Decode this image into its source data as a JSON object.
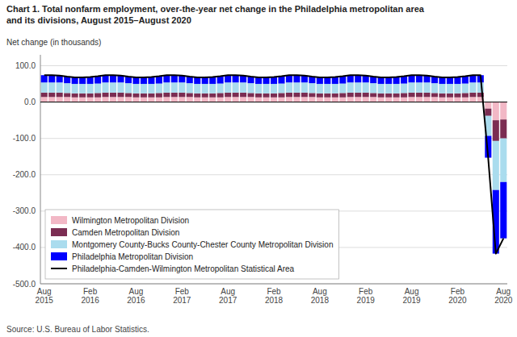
{
  "chart_data": {
    "type": "bar",
    "stacked": true,
    "title": "Chart 1. Total nonfarm employment, over-the-year net change in the Philadelphia metropolitan area\nand its divisions, August 2015–August 2020",
    "y_label": "Net change (in thousands)",
    "source": "Source: U.S. Bureau of Labor Statistics.",
    "categories": [
      "Aug\n2015",
      null,
      null,
      null,
      null,
      null,
      "Feb\n2016",
      null,
      null,
      null,
      null,
      null,
      "Aug\n2016",
      null,
      null,
      null,
      null,
      null,
      "Feb\n2017",
      null,
      null,
      null,
      null,
      null,
      "Aug\n2017",
      null,
      null,
      null,
      null,
      null,
      "Feb\n2018",
      null,
      null,
      null,
      null,
      null,
      "Aug\n2018",
      null,
      null,
      null,
      null,
      null,
      "Feb\n2019",
      null,
      null,
      null,
      null,
      null,
      "Aug\n2019",
      null,
      null,
      null,
      null,
      null,
      "Feb\n2020",
      null,
      null,
      null,
      null,
      null,
      "Aug\n2020"
    ],
    "ylim": [
      -500.0,
      130.0
    ],
    "yticks": [
      {
        "value": 100.0,
        "label": "100.0"
      },
      {
        "value": 0.0,
        "label": "0.0"
      },
      {
        "value": -100.0,
        "label": "-100.0"
      },
      {
        "value": -200.0,
        "label": "-200.0"
      },
      {
        "value": -300.0,
        "label": "-300.0"
      },
      {
        "value": -400.0,
        "label": "-400.0"
      },
      {
        "value": -500.0,
        "label": "-500.0"
      }
    ],
    "grid": true,
    "legend": "lower left",
    "series": [
      {
        "name": "Wilmington Metropolitan Division",
        "type": "bar",
        "color": "#f2b8c6",
        "values": [
          14,
          14,
          14,
          14,
          13,
          13,
          13,
          13,
          14,
          14,
          14,
          14,
          13,
          13,
          13,
          13,
          14,
          14,
          14,
          14,
          13,
          13,
          13,
          13,
          14,
          14,
          14,
          14,
          13,
          13,
          13,
          13,
          14,
          14,
          14,
          14,
          13,
          13,
          13,
          13,
          14,
          14,
          14,
          14,
          13,
          13,
          13,
          13,
          14,
          14,
          14,
          14,
          13,
          13,
          13,
          13,
          14,
          14,
          -18,
          -50,
          -48
        ]
      },
      {
        "name": "Camden Metropolitan Division",
        "type": "bar",
        "color": "#7b2d52",
        "values": [
          12,
          12,
          12,
          11,
          11,
          11,
          11,
          12,
          12,
          12,
          12,
          11,
          11,
          11,
          11,
          12,
          12,
          12,
          12,
          11,
          11,
          11,
          11,
          12,
          12,
          12,
          12,
          11,
          11,
          11,
          11,
          12,
          12,
          12,
          12,
          11,
          11,
          11,
          11,
          12,
          12,
          12,
          12,
          11,
          11,
          11,
          11,
          12,
          12,
          12,
          12,
          11,
          11,
          11,
          11,
          12,
          12,
          12,
          -20,
          -57,
          -52
        ]
      },
      {
        "name": "Montgomery County-Bucks County-Chester County Metropolitan Division",
        "type": "bar",
        "color": "#aadcee",
        "values": [
          28,
          28,
          28,
          27,
          26,
          26,
          26,
          26,
          28,
          28,
          28,
          27,
          26,
          26,
          26,
          26,
          28,
          28,
          28,
          27,
          26,
          26,
          26,
          26,
          28,
          28,
          28,
          27,
          26,
          26,
          26,
          26,
          28,
          28,
          28,
          27,
          26,
          26,
          26,
          26,
          28,
          28,
          28,
          27,
          26,
          26,
          26,
          26,
          28,
          28,
          28,
          27,
          26,
          26,
          26,
          26,
          28,
          28,
          -55,
          -135,
          -120
        ]
      },
      {
        "name": "Philadelphia Metropolitan Division",
        "type": "bar",
        "color": "#0000ff",
        "values": [
          20,
          20,
          19,
          18,
          18,
          18,
          19,
          20,
          20,
          20,
          19,
          18,
          18,
          18,
          19,
          20,
          20,
          20,
          19,
          18,
          18,
          18,
          19,
          20,
          20,
          20,
          19,
          18,
          18,
          18,
          19,
          20,
          20,
          20,
          19,
          18,
          18,
          18,
          19,
          20,
          20,
          20,
          19,
          18,
          18,
          18,
          19,
          20,
          20,
          20,
          19,
          18,
          18,
          18,
          19,
          20,
          20,
          20,
          -60,
          -175,
          -155
        ]
      },
      {
        "name": "Philadelphia-Camden-Wilmington Metropolitan Statistical Area",
        "type": "line",
        "color": "#000000",
        "values": [
          74,
          74,
          73,
          70,
          68,
          68,
          69,
          71,
          74,
          74,
          73,
          70,
          68,
          68,
          69,
          71,
          74,
          74,
          73,
          70,
          68,
          68,
          69,
          71,
          74,
          74,
          73,
          70,
          68,
          68,
          69,
          71,
          74,
          74,
          73,
          70,
          68,
          68,
          69,
          71,
          74,
          74,
          73,
          70,
          68,
          68,
          69,
          71,
          74,
          74,
          73,
          70,
          68,
          68,
          69,
          71,
          74,
          74,
          -153,
          -417,
          -375
        ]
      }
    ]
  }
}
